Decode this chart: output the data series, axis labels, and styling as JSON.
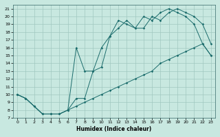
{
  "xlabel": "Humidex (Indice chaleur)",
  "bg_color": "#c8e8e0",
  "line_color": "#1a6b6b",
  "grid_color": "#a0c8c0",
  "xlim": [
    -0.5,
    23.5
  ],
  "ylim": [
    7,
    21.5
  ],
  "yticks": [
    7,
    8,
    9,
    10,
    11,
    12,
    13,
    14,
    15,
    16,
    17,
    18,
    19,
    20,
    21
  ],
  "xticks": [
    0,
    1,
    2,
    3,
    4,
    5,
    6,
    7,
    8,
    9,
    10,
    11,
    12,
    13,
    14,
    15,
    16,
    17,
    18,
    19,
    20,
    21,
    22,
    23
  ],
  "line1_x": [
    0,
    1,
    2,
    3,
    4,
    5,
    6,
    7,
    8,
    9,
    10,
    11,
    12,
    13,
    14,
    15,
    16,
    17,
    18,
    19,
    20,
    21,
    22,
    23
  ],
  "line1_y": [
    10,
    9.5,
    8.5,
    7.5,
    7.5,
    7.5,
    8,
    9.5,
    9.5,
    13,
    16,
    17.5,
    18.5,
    19.5,
    18.5,
    18.5,
    20,
    19.5,
    20.5,
    21,
    20.5,
    20,
    19,
    16.5
  ],
  "line2_x": [
    0,
    1,
    2,
    3,
    4,
    5,
    6,
    7,
    8,
    9,
    10,
    11,
    12,
    13,
    14,
    15,
    16,
    17,
    18,
    19,
    20,
    21,
    22,
    23
  ],
  "line2_y": [
    10,
    9.5,
    8.5,
    7.5,
    7.5,
    7.5,
    8,
    8.5,
    9,
    9.5,
    10,
    10.5,
    11,
    11.5,
    12,
    12.5,
    13,
    14,
    14.5,
    15,
    15.5,
    16,
    16.5,
    15
  ],
  "line3_x": [
    0,
    1,
    2,
    3,
    4,
    5,
    6,
    7,
    8,
    9,
    10,
    11,
    12,
    13,
    14,
    15,
    16,
    17,
    18,
    19,
    20,
    21,
    22,
    23
  ],
  "line3_y": [
    10,
    9.5,
    8.5,
    7.5,
    7.5,
    7.5,
    8,
    16,
    13,
    13,
    13.5,
    17.5,
    19.5,
    19,
    18.5,
    20,
    19.5,
    20.5,
    21,
    20.5,
    20,
    19,
    16.5,
    15
  ]
}
